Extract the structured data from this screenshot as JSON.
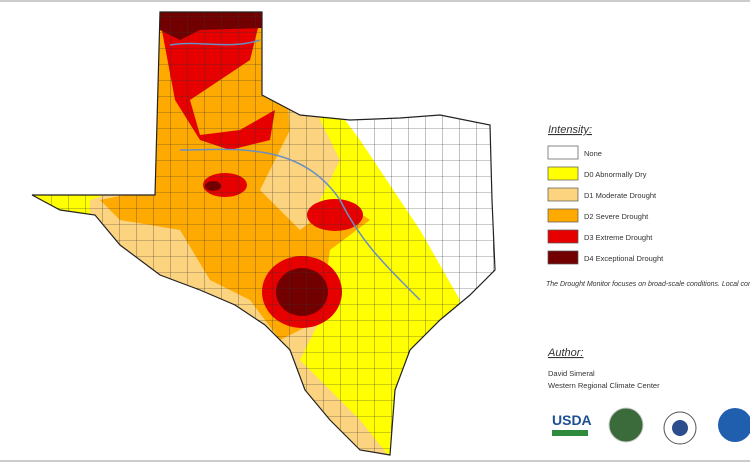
{
  "legend": {
    "title": "Intensity:",
    "items": [
      {
        "label": "None",
        "color": "#ffffff"
      },
      {
        "label": "D0 Abnormally Dry",
        "color": "#ffff00"
      },
      {
        "label": "D1 Moderate Drought",
        "color": "#fcd37f"
      },
      {
        "label": "D2 Severe Drought",
        "color": "#ffaa00"
      },
      {
        "label": "D3 Extreme Drought",
        "color": "#e60000"
      },
      {
        "label": "D4 Exceptional Drought",
        "color": "#730000"
      }
    ]
  },
  "note": "The Drought Monitor focuses on broad-scale conditions. Local conditions may vary. For more information on the Drought Monitor, go to https://droughtmonitor.unl.edu/About.aspx",
  "author": {
    "title": "Author:",
    "name": "David Simeral",
    "affiliation": "Western Regional Climate Center"
  },
  "logos": [
    "USDA"
  ]
}
